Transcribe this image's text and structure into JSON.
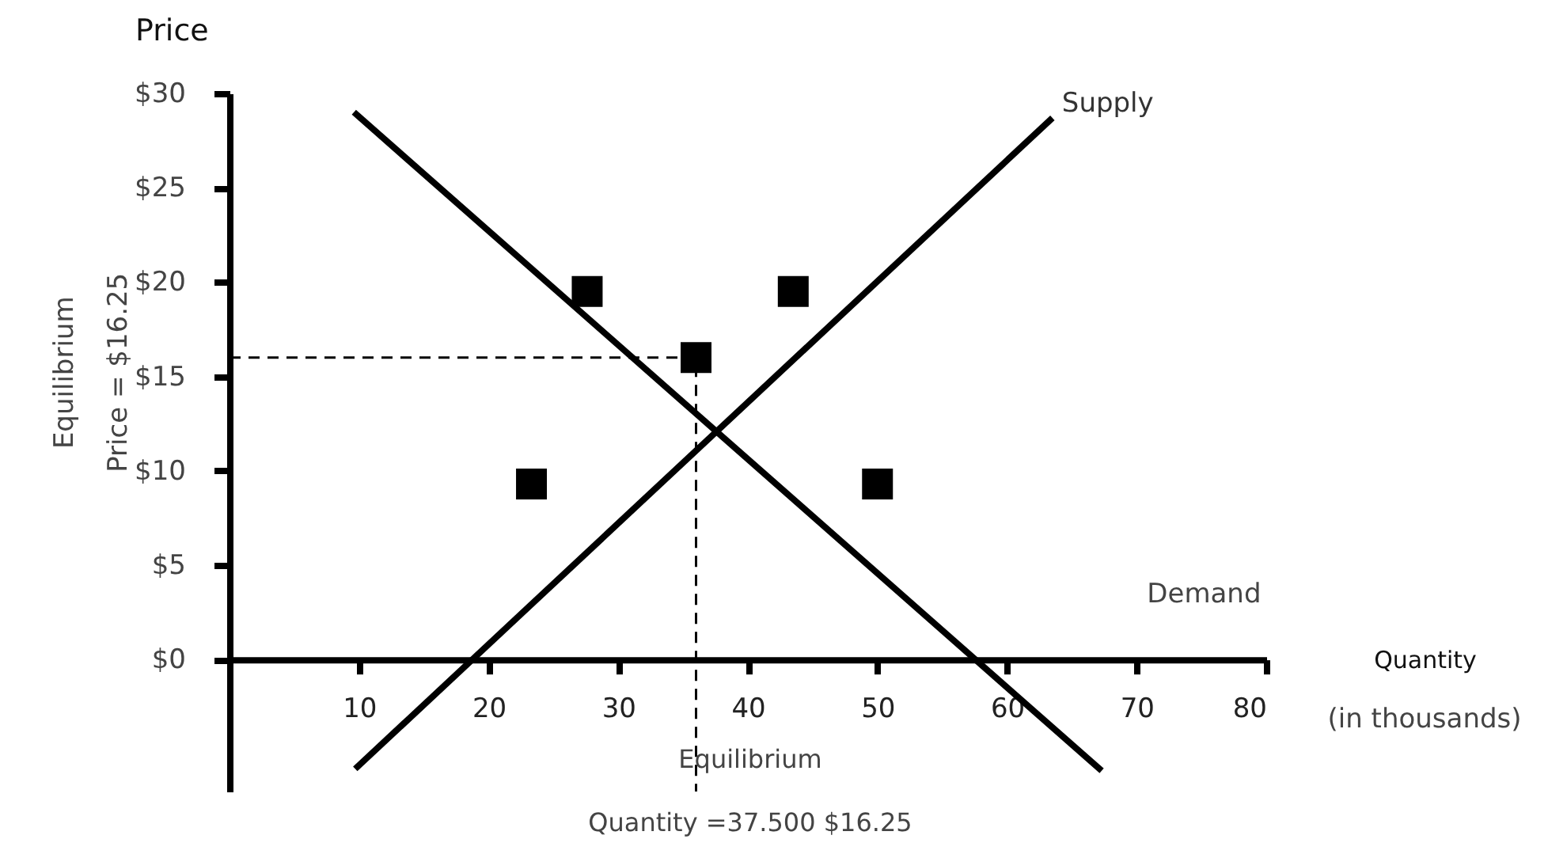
{
  "chart_data": {
    "type": "line",
    "ylabel": "Price",
    "xlabel": "Quantity",
    "xlim": [
      0,
      80
    ],
    "ylim": [
      -7,
      30
    ],
    "xticks": [
      10,
      20,
      30,
      40,
      50,
      60,
      70,
      80
    ],
    "yticks": [
      {
        "value": 0,
        "label": "$0"
      },
      {
        "value": 5,
        "label": "$5"
      },
      {
        "value": 10,
        "label": "$10"
      },
      {
        "value": 15,
        "label": "$15"
      },
      {
        "value": 20,
        "label": "$20"
      },
      {
        "value": 25,
        "label": "$25"
      },
      {
        "value": 30,
        "label": "$30"
      }
    ],
    "grid": false,
    "series": [
      {
        "type": "line",
        "color": "#000000",
        "x": [
          9.6,
          67.3
        ],
        "values": [
          29,
          -5.9
        ]
      },
      {
        "type": "line",
        "color": "#000000",
        "x": [
          9.7,
          63.5
        ],
        "values": [
          -5.8,
          28.7
        ]
      },
      {
        "type": "line",
        "color": "#000000",
        "line_style": "dashed",
        "x": [
          0,
          36,
          36
        ],
        "values": [
          16,
          16,
          -7
        ]
      },
      {
        "type": "scatter",
        "color": "#000000",
        "marker": "square",
        "x": [
          27.6,
          43.5,
          36,
          23.3,
          50
        ],
        "values": [
          19.5,
          19.5,
          16,
          9.3,
          9.3
        ]
      }
    ],
    "annotations": [
      {
        "text": "Supply",
        "x": 63.5,
        "y": 28.7
      },
      "Demand",
      "(in thousands)",
      "Equilibrium\nPrice = $16.25",
      "Equilibrium\nQuantity =37.500 $16.25"
    ]
  }
}
